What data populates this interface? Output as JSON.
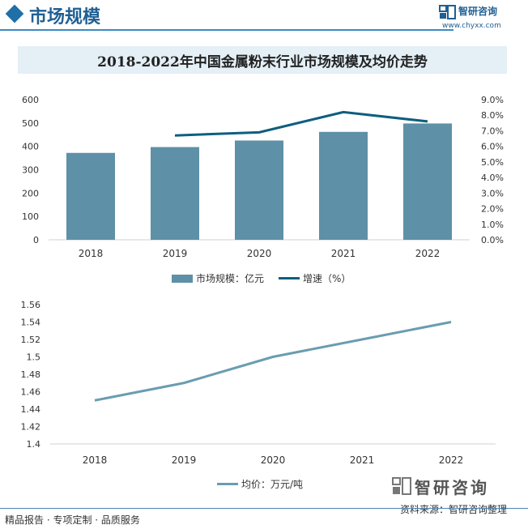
{
  "header": {
    "title": "市场规模",
    "logo_name": "智研咨询",
    "logo_url": "www.chyxx.com"
  },
  "chart_title": "2018-2022年中国金属粉末行业市场规模及均价走势",
  "chart_data": [
    {
      "type": "bar",
      "categories": [
        "2018",
        "2019",
        "2020",
        "2021",
        "2022"
      ],
      "series": [
        {
          "name": "市场规模：亿元",
          "type": "bar",
          "axis": "left",
          "values": [
            372,
            397,
            425,
            462,
            498
          ]
        },
        {
          "name": "增速（%）",
          "type": "line",
          "axis": "right",
          "values": [
            null,
            6.7,
            6.9,
            8.2,
            7.6
          ]
        }
      ],
      "ylim": [
        0,
        600
      ],
      "yticks": [
        "0",
        "100",
        "200",
        "300",
        "400",
        "500",
        "600"
      ],
      "y2lim": [
        0,
        9
      ],
      "y2ticks": [
        "0.0%",
        "1.0%",
        "2.0%",
        "3.0%",
        "4.0%",
        "5.0%",
        "6.0%",
        "7.0%",
        "8.0%",
        "9.0%"
      ],
      "legend": "bottom",
      "grid": false,
      "colors": {
        "bar": "#5e90a7",
        "line": "#0e5e7e"
      }
    },
    {
      "type": "line",
      "categories": [
        "2018",
        "2019",
        "2020",
        "2021",
        "2022"
      ],
      "series": [
        {
          "name": "均价：万元/吨",
          "values": [
            1.45,
            1.47,
            1.5,
            1.52,
            1.54
          ]
        }
      ],
      "ylim": [
        1.4,
        1.56
      ],
      "yticks": [
        "1.4",
        "1.42",
        "1.44",
        "1.46",
        "1.48",
        "1.5",
        "1.52",
        "1.54",
        "1.56"
      ],
      "legend": "bottom",
      "grid": false,
      "colors": {
        "line": "#6a9db0"
      }
    }
  ],
  "source": {
    "brand": "智研咨询",
    "text": "资料来源：智研咨询整理"
  },
  "footer": "精品报告 · 专项定制 · 品质服务"
}
